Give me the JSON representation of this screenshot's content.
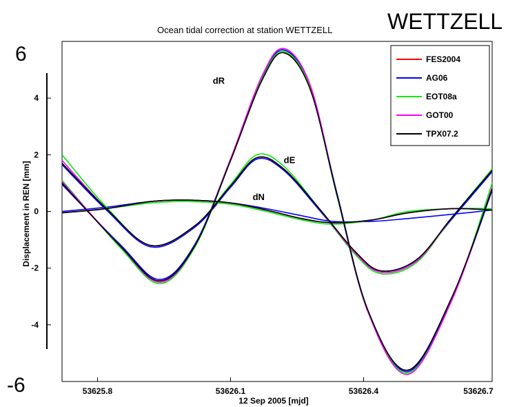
{
  "chart_data": {
    "type": "line",
    "title": "Ocean tidal correction at station WETTZELL",
    "overlay_title": "WETTZELL",
    "xlabel": "12 Sep 2005 [mjd]",
    "ylabel": "Displacement in REN [mm]",
    "xlim": [
      53625.72,
      53626.69
    ],
    "ylim": [
      -6,
      6
    ],
    "x_ticks": [
      "53625.8",
      "53626.1",
      "53626.4",
      "53626.7"
    ],
    "x_tick_values": [
      53625.8,
      53626.1,
      53626.4,
      53626.7
    ],
    "y_ticks": [
      "4",
      "2",
      "0",
      "-2",
      "-4"
    ],
    "y_tick_values": [
      4,
      2,
      0,
      -2,
      -4
    ],
    "y_extreme_labels": [
      "6",
      "-6"
    ],
    "legend_position": "top-right",
    "grid": false,
    "component_labels": [
      {
        "text": "dR",
        "x": 53626.06,
        "y": 4.5
      },
      {
        "text": "dE",
        "x": 53626.22,
        "y": 1.7
      },
      {
        "text": "dN",
        "x": 53626.15,
        "y": 0.4
      }
    ],
    "series": [
      {
        "name": "FES2004",
        "color": "#ff0000",
        "dR": [
          [
            53625.72,
            1.0
          ],
          [
            53625.85,
            -1.2
          ],
          [
            53625.94,
            -2.45
          ],
          [
            53626.02,
            -1.2
          ],
          [
            53626.1,
            1.8
          ],
          [
            53626.17,
            4.6
          ],
          [
            53626.22,
            5.6
          ],
          [
            53626.28,
            4.3
          ],
          [
            53626.34,
            0.6
          ],
          [
            53626.41,
            -3.5
          ],
          [
            53626.5,
            -5.6
          ],
          [
            53626.6,
            -3.0
          ],
          [
            53626.69,
            0.8
          ]
        ],
        "dE": [
          [
            53625.72,
            1.7
          ],
          [
            53625.82,
            0.1
          ],
          [
            53625.92,
            -1.2
          ],
          [
            53626.02,
            -0.5
          ],
          [
            53626.1,
            0.9
          ],
          [
            53626.16,
            1.9
          ],
          [
            53626.22,
            1.5
          ],
          [
            53626.3,
            0.1
          ],
          [
            53626.38,
            -1.4
          ],
          [
            53626.44,
            -2.1
          ],
          [
            53626.52,
            -1.7
          ],
          [
            53626.6,
            -0.2
          ],
          [
            53626.69,
            1.45
          ]
        ],
        "dN": [
          [
            53625.72,
            -0.05
          ],
          [
            53625.82,
            0.1
          ],
          [
            53625.92,
            0.35
          ],
          [
            53626.0,
            0.4
          ],
          [
            53626.1,
            0.3
          ],
          [
            53626.18,
            0.05
          ],
          [
            53626.26,
            -0.25
          ],
          [
            53626.33,
            -0.4
          ],
          [
            53626.42,
            -0.3
          ],
          [
            53626.5,
            -0.05
          ],
          [
            53626.6,
            0.1
          ],
          [
            53626.69,
            0.05
          ]
        ]
      },
      {
        "name": "AG06",
        "color": "#0000ff",
        "dR": [
          [
            53625.72,
            0.95
          ],
          [
            53625.85,
            -1.15
          ],
          [
            53625.94,
            -2.4
          ],
          [
            53626.02,
            -1.15
          ],
          [
            53626.1,
            1.85
          ],
          [
            53626.17,
            4.7
          ],
          [
            53626.22,
            5.7
          ],
          [
            53626.28,
            4.4
          ],
          [
            53626.34,
            0.65
          ],
          [
            53626.41,
            -3.5
          ],
          [
            53626.5,
            -5.65
          ],
          [
            53626.6,
            -3.05
          ],
          [
            53626.69,
            0.75
          ]
        ],
        "dE": [
          [
            53625.72,
            1.65
          ],
          [
            53625.82,
            0.05
          ],
          [
            53625.92,
            -1.25
          ],
          [
            53626.02,
            -0.55
          ],
          [
            53626.1,
            0.85
          ],
          [
            53626.16,
            1.85
          ],
          [
            53626.22,
            1.45
          ],
          [
            53626.3,
            0.05
          ],
          [
            53626.38,
            -1.45
          ],
          [
            53626.44,
            -2.1
          ],
          [
            53626.52,
            -1.7
          ],
          [
            53626.6,
            -0.25
          ],
          [
            53626.69,
            1.4
          ]
        ],
        "dN": [
          [
            53625.72,
            0.0
          ],
          [
            53625.82,
            0.15
          ],
          [
            53625.92,
            0.35
          ],
          [
            53626.0,
            0.4
          ],
          [
            53626.1,
            0.3
          ],
          [
            53626.18,
            0.1
          ],
          [
            53626.26,
            -0.15
          ],
          [
            53626.33,
            -0.35
          ],
          [
            53626.42,
            -0.35
          ],
          [
            53626.5,
            -0.25
          ],
          [
            53626.6,
            -0.1
          ],
          [
            53626.69,
            0.05
          ]
        ]
      },
      {
        "name": "EOT08a",
        "color": "#00ee00",
        "dR": [
          [
            53625.72,
            1.1
          ],
          [
            53625.85,
            -1.25
          ],
          [
            53625.94,
            -2.55
          ],
          [
            53626.02,
            -1.25
          ],
          [
            53626.1,
            1.8
          ],
          [
            53626.17,
            4.65
          ],
          [
            53626.22,
            5.65
          ],
          [
            53626.28,
            4.35
          ],
          [
            53626.34,
            0.55
          ],
          [
            53626.41,
            -3.55
          ],
          [
            53626.5,
            -5.7
          ],
          [
            53626.6,
            -3.1
          ],
          [
            53626.69,
            1.0
          ]
        ],
        "dE": [
          [
            53625.72,
            2.0
          ],
          [
            53625.82,
            0.15
          ],
          [
            53625.92,
            -1.2
          ],
          [
            53626.02,
            -0.5
          ],
          [
            53626.1,
            0.95
          ],
          [
            53626.16,
            2.0
          ],
          [
            53626.22,
            1.6
          ],
          [
            53626.3,
            0.1
          ],
          [
            53626.38,
            -1.5
          ],
          [
            53626.44,
            -2.2
          ],
          [
            53626.52,
            -1.8
          ],
          [
            53626.6,
            -0.2
          ],
          [
            53626.69,
            1.5
          ]
        ],
        "dN": [
          [
            53625.72,
            -0.05
          ],
          [
            53625.82,
            0.1
          ],
          [
            53625.92,
            0.3
          ],
          [
            53626.0,
            0.35
          ],
          [
            53626.1,
            0.25
          ],
          [
            53626.18,
            0.0
          ],
          [
            53626.26,
            -0.3
          ],
          [
            53626.33,
            -0.45
          ],
          [
            53626.42,
            -0.3
          ],
          [
            53626.5,
            0.0
          ],
          [
            53626.6,
            0.1
          ],
          [
            53626.69,
            0.1
          ]
        ]
      },
      {
        "name": "GOT00",
        "color": "#ff00ff",
        "dR": [
          [
            53625.72,
            1.05
          ],
          [
            53625.85,
            -1.2
          ],
          [
            53625.94,
            -2.5
          ],
          [
            53626.02,
            -1.2
          ],
          [
            53626.1,
            1.85
          ],
          [
            53626.17,
            4.75
          ],
          [
            53626.22,
            5.75
          ],
          [
            53626.28,
            4.45
          ],
          [
            53626.34,
            0.6
          ],
          [
            53626.41,
            -3.55
          ],
          [
            53626.5,
            -5.75
          ],
          [
            53626.6,
            -3.1
          ],
          [
            53626.69,
            0.85
          ]
        ],
        "dE": [
          [
            53625.72,
            1.8
          ],
          [
            53625.82,
            0.1
          ],
          [
            53625.92,
            -1.2
          ],
          [
            53626.02,
            -0.5
          ],
          [
            53626.1,
            0.9
          ],
          [
            53626.16,
            1.9
          ],
          [
            53626.22,
            1.5
          ],
          [
            53626.3,
            0.1
          ],
          [
            53626.38,
            -1.45
          ],
          [
            53626.44,
            -2.15
          ],
          [
            53626.52,
            -1.75
          ],
          [
            53626.6,
            -0.2
          ],
          [
            53626.69,
            1.45
          ]
        ],
        "dN": [
          [
            53625.72,
            -0.05
          ],
          [
            53625.82,
            0.1
          ],
          [
            53625.92,
            0.35
          ],
          [
            53626.0,
            0.4
          ],
          [
            53626.1,
            0.3
          ],
          [
            53626.18,
            0.05
          ],
          [
            53626.26,
            -0.25
          ],
          [
            53626.33,
            -0.4
          ],
          [
            53626.42,
            -0.3
          ],
          [
            53626.5,
            -0.05
          ],
          [
            53626.6,
            0.1
          ],
          [
            53626.69,
            0.05
          ]
        ]
      },
      {
        "name": "TPX07.2",
        "color": "#000000",
        "dR": [
          [
            53625.72,
            1.0
          ],
          [
            53625.85,
            -1.2
          ],
          [
            53625.94,
            -2.45
          ],
          [
            53626.02,
            -1.2
          ],
          [
            53626.1,
            1.8
          ],
          [
            53626.17,
            4.6
          ],
          [
            53626.22,
            5.6
          ],
          [
            53626.28,
            4.3
          ],
          [
            53626.34,
            0.6
          ],
          [
            53626.41,
            -3.5
          ],
          [
            53626.5,
            -5.6
          ],
          [
            53626.6,
            -3.0
          ],
          [
            53626.69,
            0.8
          ]
        ],
        "dE": [
          [
            53625.72,
            1.7
          ],
          [
            53625.82,
            0.1
          ],
          [
            53625.92,
            -1.2
          ],
          [
            53626.02,
            -0.5
          ],
          [
            53626.1,
            0.9
          ],
          [
            53626.16,
            1.9
          ],
          [
            53626.22,
            1.5
          ],
          [
            53626.3,
            0.1
          ],
          [
            53626.38,
            -1.4
          ],
          [
            53626.44,
            -2.1
          ],
          [
            53626.52,
            -1.7
          ],
          [
            53626.6,
            -0.2
          ],
          [
            53626.69,
            1.45
          ]
        ],
        "dN": [
          [
            53625.72,
            -0.05
          ],
          [
            53625.82,
            0.1
          ],
          [
            53625.92,
            0.35
          ],
          [
            53626.0,
            0.4
          ],
          [
            53626.1,
            0.3
          ],
          [
            53626.18,
            0.05
          ],
          [
            53626.26,
            -0.25
          ],
          [
            53626.33,
            -0.4
          ],
          [
            53626.42,
            -0.3
          ],
          [
            53626.5,
            -0.05
          ],
          [
            53626.6,
            0.1
          ],
          [
            53626.69,
            0.05
          ]
        ]
      }
    ]
  }
}
